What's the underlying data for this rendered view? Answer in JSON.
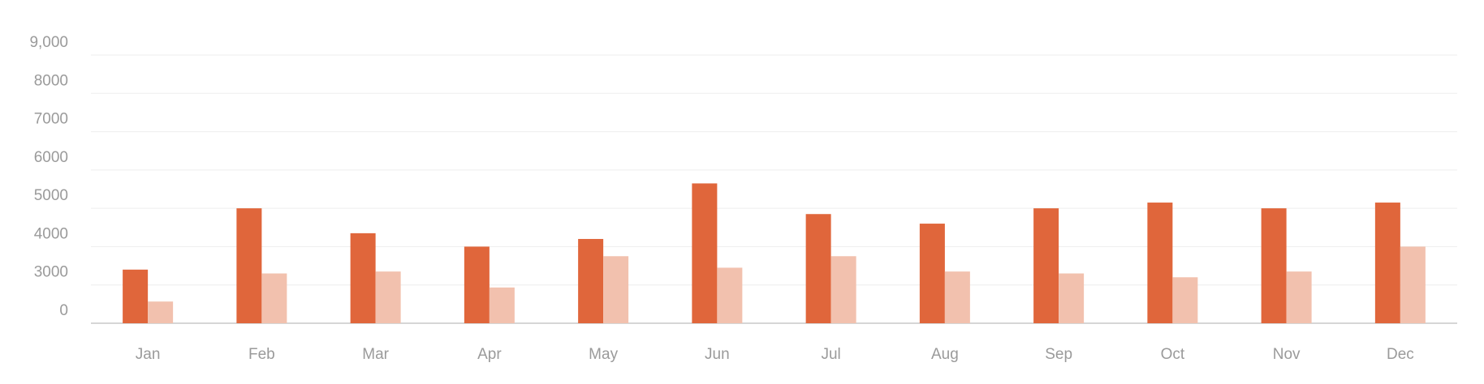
{
  "chart_data": {
    "type": "bar",
    "categories": [
      "Jan",
      "Feb",
      "Mar",
      "Apr",
      "May",
      "Jun",
      "Jul",
      "Aug",
      "Sep",
      "Oct",
      "Nov",
      "Dec"
    ],
    "series": [
      {
        "color": "#e0663b",
        "values": [
          3400,
          5000,
          4350,
          4000,
          4200,
          5650,
          4850,
          4600,
          5000,
          5150,
          5000,
          5150
        ]
      },
      {
        "color": "#f2c1ae",
        "values": [
          1700,
          3300,
          3350,
          2800,
          3750,
          3450,
          3750,
          3350,
          3300,
          3200,
          3350,
          4000
        ]
      }
    ],
    "ylim": [
      0,
      9000
    ],
    "yticks": [
      0,
      3000,
      4000,
      5000,
      6000,
      7000,
      8000,
      {
        "value": 9000,
        "label": "9,000"
      }
    ],
    "grid": true
  }
}
